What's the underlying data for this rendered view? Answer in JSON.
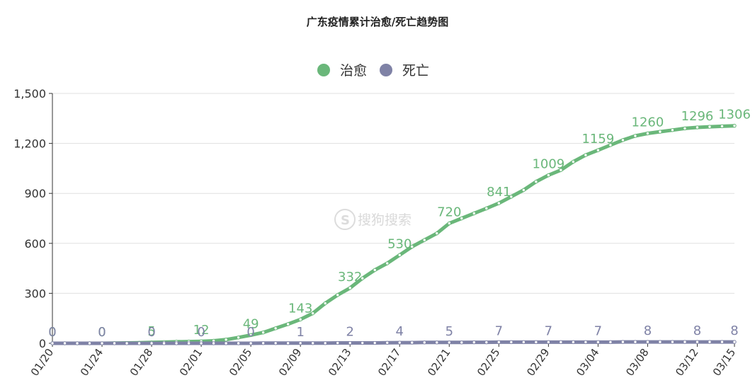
{
  "chart_data": {
    "type": "line",
    "title": "广东疫情累计治愈/死亡趋势图",
    "watermark": "搜狗搜索",
    "xlabel": "",
    "ylabel": "",
    "ylim": [
      0,
      1500
    ],
    "yticks": [
      0,
      300,
      600,
      900,
      1200,
      1500
    ],
    "yticks_label": [
      "0",
      "300",
      "600",
      "900",
      "1,200",
      "1,500"
    ],
    "x": [
      "01/20",
      "01/21",
      "01/22",
      "01/23",
      "01/24",
      "01/25",
      "01/26",
      "01/27",
      "01/28",
      "01/29",
      "01/30",
      "01/31",
      "02/01",
      "02/02",
      "02/03",
      "02/04",
      "02/05",
      "02/06",
      "02/07",
      "02/08",
      "02/09",
      "02/10",
      "02/11",
      "02/12",
      "02/13",
      "02/14",
      "02/15",
      "02/16",
      "02/17",
      "02/18",
      "02/19",
      "02/20",
      "02/21",
      "02/22",
      "02/23",
      "02/24",
      "02/25",
      "02/26",
      "02/27",
      "02/28",
      "02/29",
      "03/01",
      "03/02",
      "03/03",
      "03/04",
      "03/05",
      "03/06",
      "03/07",
      "03/08",
      "03/09",
      "03/10",
      "03/11",
      "03/12",
      "03/13",
      "03/14",
      "03/15"
    ],
    "xtick_labels": [
      "01/20",
      "01/24",
      "01/28",
      "02/01",
      "02/05",
      "02/09",
      "02/13",
      "02/17",
      "02/21",
      "02/25",
      "02/29",
      "03/04",
      "03/08",
      "03/12",
      "03/15"
    ],
    "legend_position": "top-center",
    "grid": true,
    "series": [
      {
        "name": "治愈",
        "color": "#6ab77a",
        "values": [
          0,
          0,
          0,
          0,
          0,
          1,
          2,
          3,
          5,
          7,
          9,
          10,
          12,
          15,
          22,
          35,
          49,
          65,
          90,
          115,
          143,
          180,
          240,
          290,
          332,
          390,
          440,
          480,
          530,
          580,
          620,
          660,
          720,
          750,
          780,
          810,
          841,
          880,
          920,
          970,
          1009,
          1040,
          1090,
          1130,
          1159,
          1190,
          1220,
          1245,
          1260,
          1270,
          1280,
          1290,
          1296,
          1300,
          1303,
          1306
        ],
        "labels": [
          {
            "i": 0,
            "text": "0"
          },
          {
            "i": 4,
            "text": "0"
          },
          {
            "i": 8,
            "text": "5"
          },
          {
            "i": 12,
            "text": "12"
          },
          {
            "i": 16,
            "text": "49"
          },
          {
            "i": 20,
            "text": "143"
          },
          {
            "i": 24,
            "text": "332"
          },
          {
            "i": 28,
            "text": "530"
          },
          {
            "i": 32,
            "text": "720"
          },
          {
            "i": 36,
            "text": "841"
          },
          {
            "i": 40,
            "text": "1009"
          },
          {
            "i": 44,
            "text": "1159"
          },
          {
            "i": 48,
            "text": "1260"
          },
          {
            "i": 52,
            "text": "1296"
          },
          {
            "i": 55,
            "text": "1306"
          }
        ]
      },
      {
        "name": "死亡",
        "color": "#7f82a6",
        "values": [
          0,
          0,
          0,
          0,
          0,
          0,
          0,
          0,
          0,
          0,
          0,
          0,
          0,
          0,
          0,
          0,
          0,
          1,
          1,
          1,
          1,
          1,
          1,
          2,
          2,
          2,
          2,
          3,
          4,
          4,
          5,
          5,
          5,
          5,
          6,
          6,
          7,
          7,
          7,
          7,
          7,
          7,
          7,
          7,
          7,
          7,
          8,
          8,
          8,
          8,
          8,
          8,
          8,
          8,
          8,
          8
        ],
        "labels": [
          {
            "i": 0,
            "text": "0"
          },
          {
            "i": 4,
            "text": "0"
          },
          {
            "i": 8,
            "text": "0"
          },
          {
            "i": 12,
            "text": "0"
          },
          {
            "i": 16,
            "text": "0"
          },
          {
            "i": 20,
            "text": "1"
          },
          {
            "i": 24,
            "text": "2"
          },
          {
            "i": 28,
            "text": "4"
          },
          {
            "i": 32,
            "text": "5"
          },
          {
            "i": 36,
            "text": "7"
          },
          {
            "i": 40,
            "text": "7"
          },
          {
            "i": 44,
            "text": "7"
          },
          {
            "i": 48,
            "text": "8"
          },
          {
            "i": 52,
            "text": "8"
          },
          {
            "i": 55,
            "text": "8"
          }
        ]
      }
    ]
  }
}
